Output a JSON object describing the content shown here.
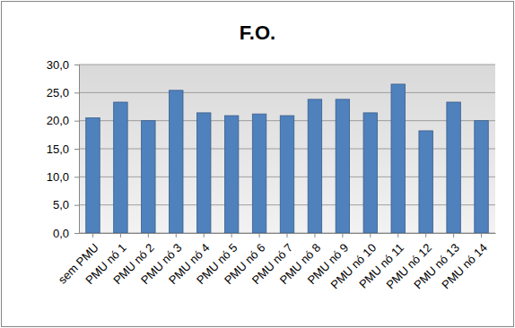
{
  "chart_data": {
    "type": "bar",
    "title": "F.O.",
    "categories": [
      "sem PMU",
      "PMU nó 1",
      "PMU nó 2",
      "PMU nó 3",
      "PMU nó 4",
      "PMU nó 5",
      "PMU nó 6",
      "PMU nó 7",
      "PMU nó 8",
      "PMU nó 9",
      "PMU nó 10",
      "PMU nó 11",
      "PMU nó 12",
      "PMU nó 13",
      "PMU nó 14"
    ],
    "values": [
      20.5,
      23.3,
      20.0,
      25.4,
      21.4,
      20.9,
      21.2,
      20.9,
      23.8,
      23.8,
      21.4,
      26.5,
      18.2,
      23.3,
      20.0
    ],
    "color": "#4f81bd",
    "ylim": [
      0,
      30
    ],
    "yticks": [
      {
        "value": 0,
        "label": "0,0"
      },
      {
        "value": 5,
        "label": "5,0"
      },
      {
        "value": 10,
        "label": "10,0"
      },
      {
        "value": 15,
        "label": "15,0"
      },
      {
        "value": 20,
        "label": "20,0"
      },
      {
        "value": 25,
        "label": "25,0"
      },
      {
        "value": 30,
        "label": "30,0"
      }
    ],
    "grid": true
  }
}
